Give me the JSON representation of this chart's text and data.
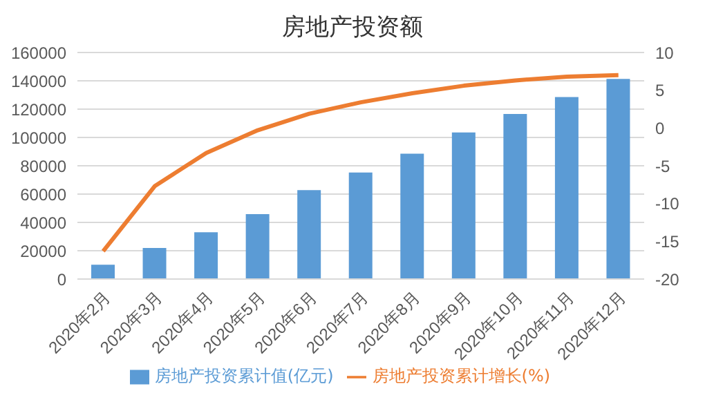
{
  "chart_data": {
    "type": "bar",
    "title": "房地产投资额",
    "categories": [
      "2020年2月",
      "2020年3月",
      "2020年4月",
      "2020年5月",
      "2020年6月",
      "2020年7月",
      "2020年8月",
      "2020年9月",
      "2020年10月",
      "2020年11月",
      "2020年12月"
    ],
    "series": [
      {
        "name": "房地产投资累计值(亿元)",
        "color": "#5b9bd5",
        "values": [
          10100,
          22000,
          33100,
          45900,
          62800,
          75300,
          88500,
          103500,
          116600,
          128500,
          141400
        ]
      },
      {
        "name": "房地产投资累计增长(%)",
        "type": "line",
        "axis": "y2",
        "color": "#ed7d31",
        "values": [
          -16.3,
          -7.7,
          -3.3,
          -0.3,
          1.9,
          3.4,
          4.6,
          5.6,
          6.3,
          6.8,
          7.0
        ]
      }
    ],
    "ylim": [
      0,
      160000
    ],
    "yticks": [
      0,
      20000,
      40000,
      60000,
      80000,
      100000,
      120000,
      140000,
      160000
    ],
    "y2lim": [
      -20,
      10
    ],
    "y2ticks": [
      -20,
      -15,
      -10,
      -5,
      0,
      5,
      10
    ],
    "grid": "y",
    "legend": "bottom",
    "marker": "none",
    "line_style": "solid"
  }
}
